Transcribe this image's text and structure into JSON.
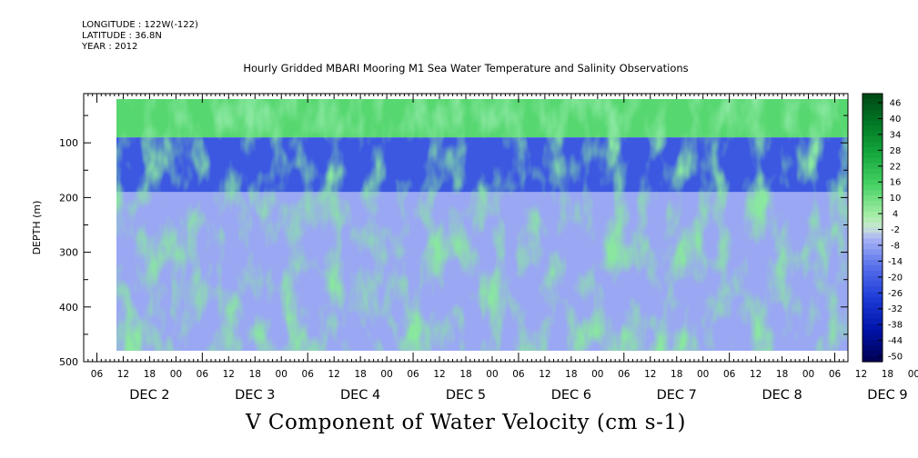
{
  "meta": {
    "longitude": "LONGITUDE : 122W(-122)",
    "latitude": "LATITUDE : 36.8N",
    "year": "YEAR : 2012"
  },
  "chart_data": {
    "type": "heatmap",
    "title": "Hourly Gridded MBARI Mooring M1 Sea Water Temperature and Salinity Observations",
    "xlabel": "V Component of Water Velocity (cm s-1)",
    "ylabel": "DEPTH (m)",
    "y_ticks": [
      "100",
      "200",
      "300",
      "400",
      "500"
    ],
    "ylim": [
      500,
      10
    ],
    "x_hour_ticks": [
      "06",
      "12",
      "18",
      "00",
      "06",
      "12",
      "18",
      "00",
      "06",
      "12",
      "18",
      "00",
      "06",
      "12",
      "18",
      "00",
      "06",
      "12",
      "18",
      "00",
      "06",
      "12",
      "18",
      "00",
      "06",
      "12",
      "18",
      "00",
      "06",
      "12",
      "18",
      "00"
    ],
    "x_day_labels": [
      "DEC  2",
      "DEC  3",
      "DEC  4",
      "DEC  5",
      "DEC  6",
      "DEC  7",
      "DEC  8",
      "DEC  9"
    ],
    "colorbar": {
      "ticks": [
        "46",
        "40",
        "34",
        "28",
        "22",
        "16",
        "10",
        "4",
        "-2",
        "-8",
        "-14",
        "-20",
        "-26",
        "-32",
        "-38",
        "-44",
        "-50"
      ],
      "range": [
        -50,
        50
      ]
    },
    "series": [
      {
        "depth_band_m": [
          20,
          90
        ],
        "mean_value": 14
      },
      {
        "depth_band_m": [
          90,
          190
        ],
        "mean_value": -20
      },
      {
        "depth_band_m": [
          190,
          480
        ],
        "mean_value": -6
      }
    ]
  }
}
